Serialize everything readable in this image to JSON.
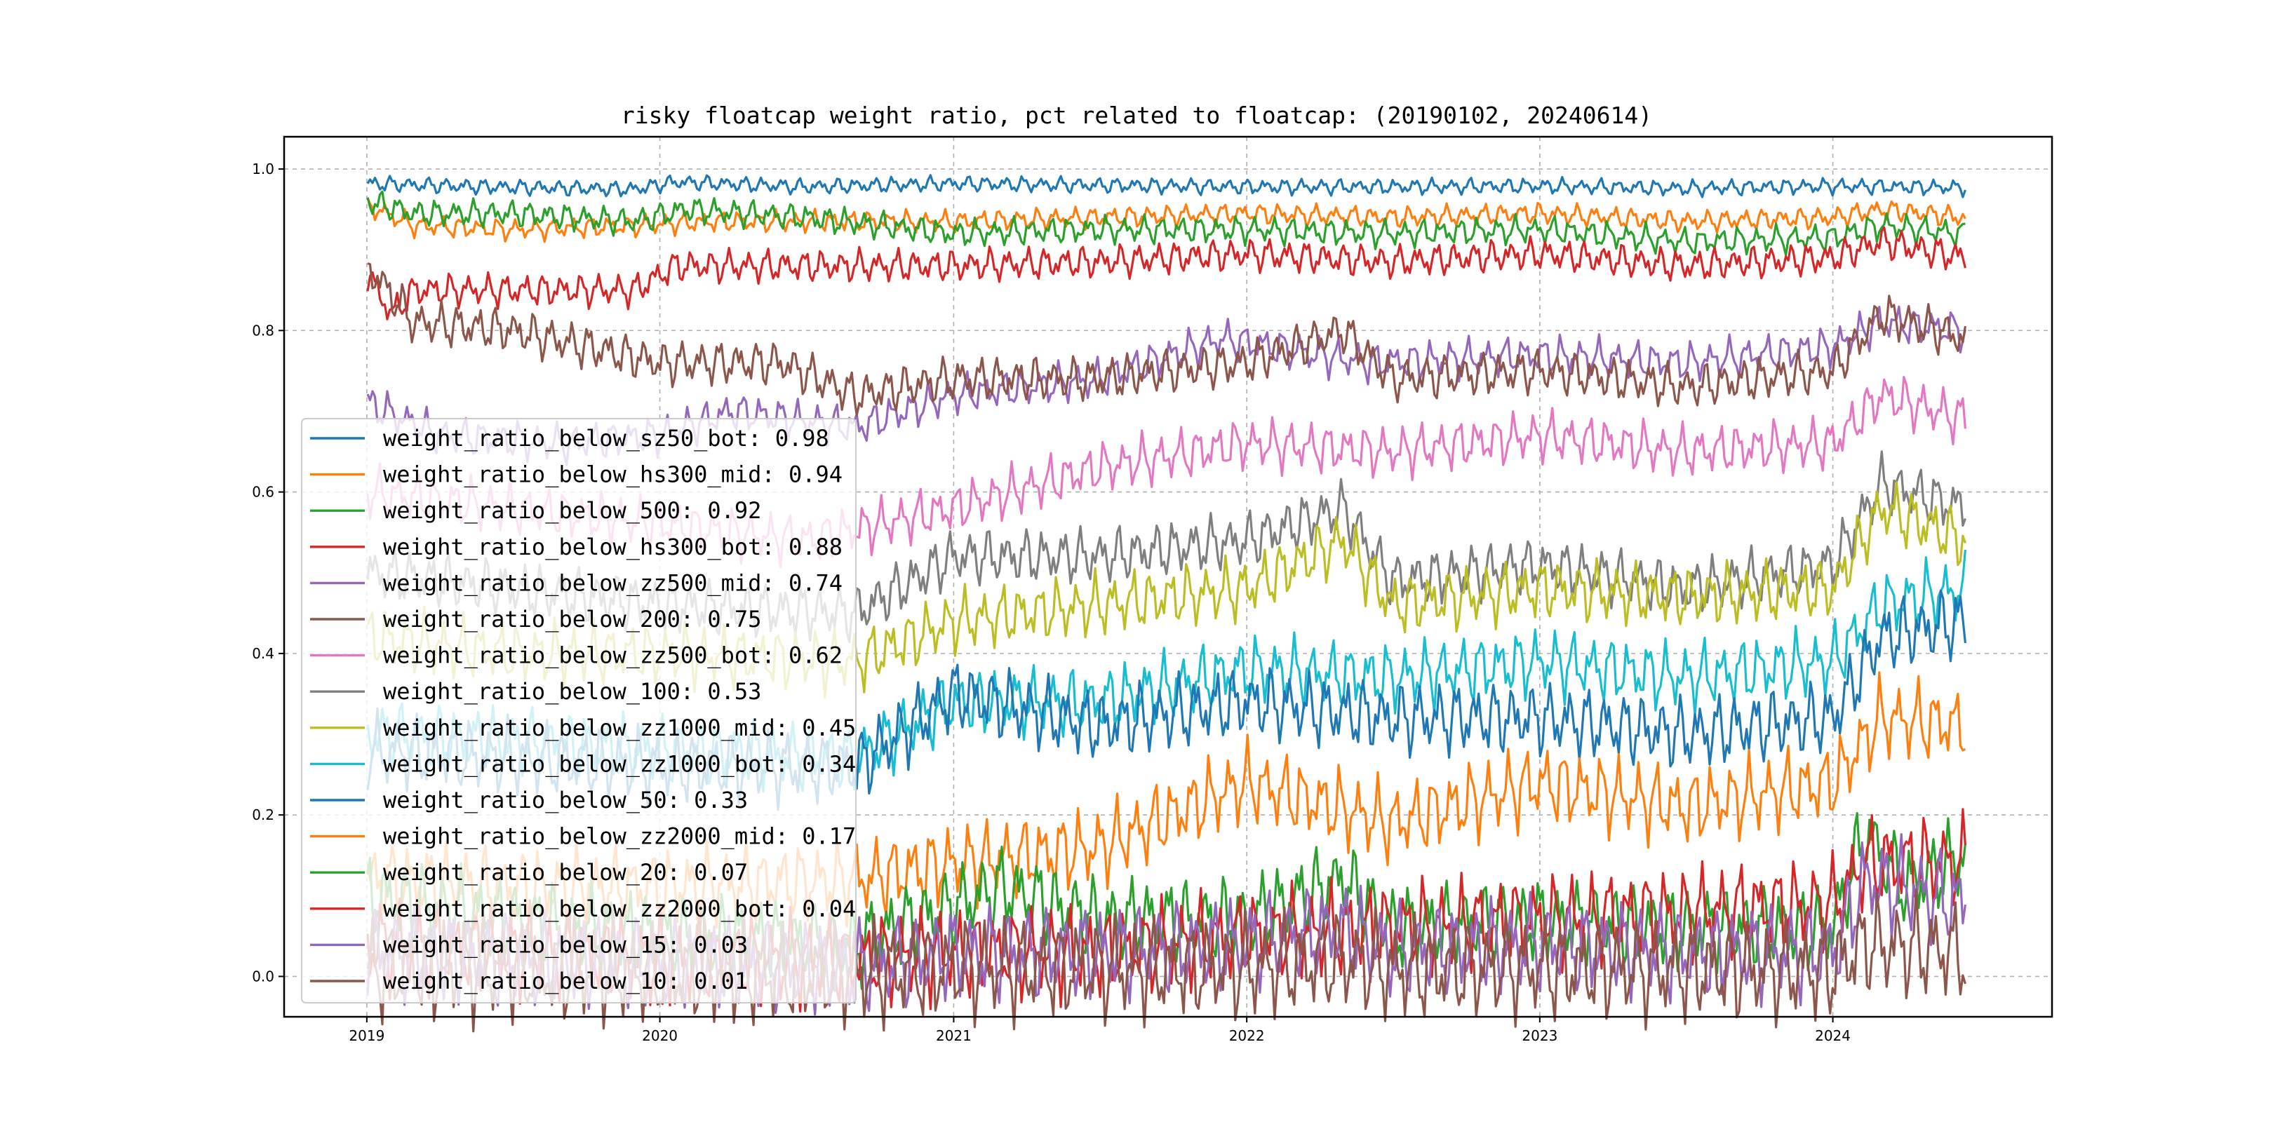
{
  "chart_data": {
    "type": "line",
    "title": "risky floatcap weight ratio, pct related to floatcap: (20190102, 20240614)",
    "xlabel": "",
    "ylabel": "",
    "x_range": [
      "2019-01-02",
      "2024-06-14"
    ],
    "xlim": [
      "2018-09-20",
      "2024-09-30"
    ],
    "ylim": [
      -0.05,
      1.04
    ],
    "x_ticks": [
      {
        "date": "2019-01-01",
        "label": "2019"
      },
      {
        "date": "2020-01-01",
        "label": "2020"
      },
      {
        "date": "2021-01-01",
        "label": "2021"
      },
      {
        "date": "2022-01-01",
        "label": "2022"
      },
      {
        "date": "2023-01-01",
        "label": "2023"
      },
      {
        "date": "2024-01-01",
        "label": "2024"
      }
    ],
    "y_ticks": [
      {
        "value": 0.0,
        "label": "0.0"
      },
      {
        "value": 0.2,
        "label": "0.2"
      },
      {
        "value": 0.4,
        "label": "0.4"
      },
      {
        "value": 0.6,
        "label": "0.6"
      },
      {
        "value": 0.8,
        "label": "0.8"
      },
      {
        "value": 1.0,
        "label": "1.0"
      }
    ],
    "grid": true,
    "grid_style": "dashed",
    "legend_position": "center-left",
    "series": [
      {
        "name": "weight_ratio_below_sz50_bot",
        "legend": "weight_ratio_below_sz50_bot: 0.98",
        "color": "#1f77b4",
        "points": [
          [
            "2019-01-02",
            0.982
          ],
          [
            "2019-06-01",
            0.978
          ],
          [
            "2019-12-01",
            0.975
          ],
          [
            "2020-01-20",
            0.984
          ],
          [
            "2020-07-01",
            0.978
          ],
          [
            "2021-01-01",
            0.982
          ],
          [
            "2021-07-01",
            0.98
          ],
          [
            "2022-01-01",
            0.978
          ],
          [
            "2022-07-01",
            0.978
          ],
          [
            "2023-01-01",
            0.979
          ],
          [
            "2023-07-01",
            0.976
          ],
          [
            "2024-01-01",
            0.979
          ],
          [
            "2024-06-14",
            0.977
          ]
        ]
      },
      {
        "name": "weight_ratio_below_hs300_mid",
        "legend": "weight_ratio_below_hs300_mid: 0.94",
        "color": "#ff7f0e",
        "points": [
          [
            "2019-01-02",
            0.955
          ],
          [
            "2019-03-01",
            0.93
          ],
          [
            "2019-07-01",
            0.925
          ],
          [
            "2019-12-01",
            0.93
          ],
          [
            "2020-03-01",
            0.935
          ],
          [
            "2020-07-01",
            0.935
          ],
          [
            "2021-01-01",
            0.935
          ],
          [
            "2021-07-01",
            0.94
          ],
          [
            "2022-01-01",
            0.945
          ],
          [
            "2022-07-01",
            0.94
          ],
          [
            "2023-01-01",
            0.945
          ],
          [
            "2023-07-01",
            0.935
          ],
          [
            "2024-01-01",
            0.94
          ],
          [
            "2024-03-01",
            0.95
          ],
          [
            "2024-06-14",
            0.94
          ]
        ]
      },
      {
        "name": "weight_ratio_below_500",
        "legend": "weight_ratio_below_500: 0.92",
        "color": "#2ca02c",
        "points": [
          [
            "2019-01-02",
            0.96
          ],
          [
            "2019-03-01",
            0.945
          ],
          [
            "2019-07-01",
            0.945
          ],
          [
            "2019-12-01",
            0.935
          ],
          [
            "2020-02-01",
            0.95
          ],
          [
            "2020-07-01",
            0.94
          ],
          [
            "2021-01-01",
            0.92
          ],
          [
            "2021-07-01",
            0.925
          ],
          [
            "2022-01-01",
            0.925
          ],
          [
            "2022-07-01",
            0.92
          ],
          [
            "2023-01-01",
            0.925
          ],
          [
            "2023-07-01",
            0.91
          ],
          [
            "2024-01-01",
            0.915
          ],
          [
            "2024-03-01",
            0.93
          ],
          [
            "2024-06-14",
            0.92
          ]
        ]
      },
      {
        "name": "weight_ratio_below_hs300_bot",
        "legend": "weight_ratio_below_hs300_bot: 0.88",
        "color": "#d62728",
        "points": [
          [
            "2019-01-02",
            0.87
          ],
          [
            "2019-02-01",
            0.82
          ],
          [
            "2019-03-01",
            0.85
          ],
          [
            "2019-07-01",
            0.85
          ],
          [
            "2019-12-01",
            0.85
          ],
          [
            "2020-01-20",
            0.88
          ],
          [
            "2020-07-01",
            0.88
          ],
          [
            "2021-01-01",
            0.88
          ],
          [
            "2021-07-01",
            0.885
          ],
          [
            "2022-01-01",
            0.895
          ],
          [
            "2022-07-01",
            0.885
          ],
          [
            "2023-01-01",
            0.895
          ],
          [
            "2023-07-01",
            0.88
          ],
          [
            "2024-01-01",
            0.89
          ],
          [
            "2024-03-01",
            0.91
          ],
          [
            "2024-06-14",
            0.89
          ]
        ]
      },
      {
        "name": "weight_ratio_below_zz500_mid",
        "legend": "weight_ratio_below_zz500_mid: 0.74",
        "color": "#9467bd",
        "points": [
          [
            "2019-01-02",
            0.71
          ],
          [
            "2019-04-01",
            0.67
          ],
          [
            "2019-09-01",
            0.66
          ],
          [
            "2020-01-01",
            0.67
          ],
          [
            "2020-04-01",
            0.7
          ],
          [
            "2020-09-01",
            0.68
          ],
          [
            "2021-01-01",
            0.72
          ],
          [
            "2021-07-01",
            0.74
          ],
          [
            "2021-12-01",
            0.79
          ],
          [
            "2022-06-01",
            0.76
          ],
          [
            "2023-01-01",
            0.77
          ],
          [
            "2023-07-01",
            0.76
          ],
          [
            "2024-01-01",
            0.78
          ],
          [
            "2024-03-01",
            0.81
          ],
          [
            "2024-06-14",
            0.8
          ]
        ]
      },
      {
        "name": "weight_ratio_below_200",
        "legend": "weight_ratio_below_200: 0.75",
        "color": "#8c564b",
        "points": [
          [
            "2019-01-02",
            0.88
          ],
          [
            "2019-03-01",
            0.81
          ],
          [
            "2019-07-01",
            0.8
          ],
          [
            "2020-01-01",
            0.76
          ],
          [
            "2020-06-01",
            0.76
          ],
          [
            "2020-09-01",
            0.72
          ],
          [
            "2021-01-01",
            0.74
          ],
          [
            "2021-07-01",
            0.74
          ],
          [
            "2022-01-01",
            0.76
          ],
          [
            "2022-05-01",
            0.8
          ],
          [
            "2022-07-01",
            0.74
          ],
          [
            "2023-01-01",
            0.75
          ],
          [
            "2023-07-01",
            0.73
          ],
          [
            "2024-01-01",
            0.75
          ],
          [
            "2024-03-01",
            0.82
          ],
          [
            "2024-06-14",
            0.79
          ]
        ]
      },
      {
        "name": "weight_ratio_below_zz500_bot",
        "legend": "weight_ratio_below_zz500_bot: 0.62",
        "color": "#e377c2",
        "points": [
          [
            "2019-01-02",
            0.6
          ],
          [
            "2019-07-01",
            0.58
          ],
          [
            "2020-01-01",
            0.56
          ],
          [
            "2020-07-01",
            0.54
          ],
          [
            "2021-01-01",
            0.58
          ],
          [
            "2021-07-01",
            0.63
          ],
          [
            "2022-01-01",
            0.66
          ],
          [
            "2022-07-01",
            0.65
          ],
          [
            "2023-01-01",
            0.67
          ],
          [
            "2023-07-01",
            0.65
          ],
          [
            "2024-01-01",
            0.66
          ],
          [
            "2024-03-01",
            0.72
          ],
          [
            "2024-06-14",
            0.69
          ]
        ]
      },
      {
        "name": "weight_ratio_below_100",
        "legend": "weight_ratio_below_100: 0.53",
        "color": "#7f7f7f",
        "points": [
          [
            "2019-01-02",
            0.5
          ],
          [
            "2019-07-01",
            0.48
          ],
          [
            "2020-01-01",
            0.46
          ],
          [
            "2020-09-01",
            0.45
          ],
          [
            "2021-01-01",
            0.52
          ],
          [
            "2021-07-01",
            0.52
          ],
          [
            "2022-01-01",
            0.54
          ],
          [
            "2022-05-01",
            0.58
          ],
          [
            "2022-07-01",
            0.49
          ],
          [
            "2023-01-01",
            0.51
          ],
          [
            "2023-07-01",
            0.48
          ],
          [
            "2024-01-01",
            0.51
          ],
          [
            "2024-03-01",
            0.61
          ],
          [
            "2024-06-14",
            0.58
          ]
        ]
      },
      {
        "name": "weight_ratio_below_zz1000_mid",
        "legend": "weight_ratio_below_zz1000_mid: 0.45",
        "color": "#bcbd22",
        "points": [
          [
            "2019-01-02",
            0.42
          ],
          [
            "2019-07-01",
            0.4
          ],
          [
            "2020-01-01",
            0.4
          ],
          [
            "2020-09-01",
            0.39
          ],
          [
            "2021-01-01",
            0.44
          ],
          [
            "2021-07-01",
            0.46
          ],
          [
            "2022-01-01",
            0.48
          ],
          [
            "2022-05-01",
            0.54
          ],
          [
            "2022-07-01",
            0.46
          ],
          [
            "2023-01-01",
            0.48
          ],
          [
            "2023-07-01",
            0.47
          ],
          [
            "2024-01-01",
            0.48
          ],
          [
            "2024-03-01",
            0.58
          ],
          [
            "2024-06-14",
            0.54
          ]
        ]
      },
      {
        "name": "weight_ratio_below_zz1000_bot",
        "legend": "weight_ratio_below_zz1000_bot: 0.34",
        "color": "#17becf",
        "points": [
          [
            "2019-01-02",
            0.3
          ],
          [
            "2019-07-01",
            0.29
          ],
          [
            "2020-01-01",
            0.28
          ],
          [
            "2020-09-01",
            0.27
          ],
          [
            "2021-01-01",
            0.34
          ],
          [
            "2021-07-01",
            0.34
          ],
          [
            "2022-01-01",
            0.38
          ],
          [
            "2022-07-01",
            0.37
          ],
          [
            "2023-01-01",
            0.39
          ],
          [
            "2023-07-01",
            0.37
          ],
          [
            "2024-01-01",
            0.39
          ],
          [
            "2024-03-01",
            0.46
          ],
          [
            "2024-06-14",
            0.48
          ]
        ]
      },
      {
        "name": "weight_ratio_below_50",
        "legend": "weight_ratio_below_50: 0.33",
        "color": "#1f77b4",
        "points": [
          [
            "2019-01-02",
            0.28
          ],
          [
            "2019-07-01",
            0.27
          ],
          [
            "2020-01-01",
            0.26
          ],
          [
            "2020-09-01",
            0.26
          ],
          [
            "2021-01-01",
            0.35
          ],
          [
            "2021-07-01",
            0.31
          ],
          [
            "2022-01-01",
            0.34
          ],
          [
            "2022-07-01",
            0.32
          ],
          [
            "2023-01-01",
            0.32
          ],
          [
            "2023-07-01",
            0.3
          ],
          [
            "2024-01-01",
            0.32
          ],
          [
            "2024-03-01",
            0.42
          ],
          [
            "2024-06-14",
            0.44
          ]
        ]
      },
      {
        "name": "weight_ratio_below_zz2000_mid",
        "legend": "weight_ratio_below_zz2000_mid: 0.17",
        "color": "#ff7f0e",
        "points": [
          [
            "2019-01-02",
            0.12
          ],
          [
            "2019-07-01",
            0.11
          ],
          [
            "2020-01-01",
            0.11
          ],
          [
            "2020-09-01",
            0.12
          ],
          [
            "2021-01-01",
            0.14
          ],
          [
            "2021-07-01",
            0.16
          ],
          [
            "2022-01-01",
            0.24
          ],
          [
            "2022-07-01",
            0.19
          ],
          [
            "2023-01-01",
            0.24
          ],
          [
            "2023-07-01",
            0.21
          ],
          [
            "2024-01-01",
            0.24
          ],
          [
            "2024-03-01",
            0.32
          ],
          [
            "2024-06-14",
            0.31
          ]
        ]
      },
      {
        "name": "weight_ratio_below_20",
        "legend": "weight_ratio_below_20: 0.07",
        "color": "#2ca02c",
        "points": [
          [
            "2019-01-02",
            0.1
          ],
          [
            "2019-07-01",
            0.07
          ],
          [
            "2020-01-01",
            0.05
          ],
          [
            "2020-09-01",
            0.04
          ],
          [
            "2021-03-01",
            0.11
          ],
          [
            "2021-07-01",
            0.07
          ],
          [
            "2022-01-01",
            0.07
          ],
          [
            "2022-05-01",
            0.12
          ],
          [
            "2022-07-01",
            0.06
          ],
          [
            "2023-01-01",
            0.07
          ],
          [
            "2023-07-01",
            0.06
          ],
          [
            "2024-01-01",
            0.06
          ],
          [
            "2024-02-10",
            0.18
          ],
          [
            "2024-04-01",
            0.11
          ],
          [
            "2024-06-14",
            0.15
          ]
        ]
      },
      {
        "name": "weight_ratio_below_zz2000_bot",
        "legend": "weight_ratio_below_zz2000_bot: 0.04",
        "color": "#d62728",
        "points": [
          [
            "2019-01-02",
            0.04
          ],
          [
            "2019-07-01",
            0.03
          ],
          [
            "2020-01-01",
            0.02
          ],
          [
            "2020-09-01",
            0.02
          ],
          [
            "2021-01-01",
            0.03
          ],
          [
            "2021-07-01",
            0.03
          ],
          [
            "2022-01-01",
            0.05
          ],
          [
            "2022-07-01",
            0.06
          ],
          [
            "2023-01-01",
            0.07
          ],
          [
            "2023-07-01",
            0.08
          ],
          [
            "2024-01-01",
            0.09
          ],
          [
            "2024-02-10",
            0.14
          ],
          [
            "2024-06-14",
            0.14
          ]
        ]
      },
      {
        "name": "weight_ratio_below_15",
        "legend": "weight_ratio_below_15: 0.03",
        "color": "#9467bd",
        "points": [
          [
            "2019-01-02",
            0.03
          ],
          [
            "2019-07-01",
            0.02
          ],
          [
            "2020-01-01",
            0.015
          ],
          [
            "2020-09-01",
            0.01
          ],
          [
            "2021-01-01",
            0.03
          ],
          [
            "2021-07-01",
            0.03
          ],
          [
            "2022-01-01",
            0.04
          ],
          [
            "2022-05-01",
            0.06
          ],
          [
            "2022-07-01",
            0.03
          ],
          [
            "2023-01-01",
            0.04
          ],
          [
            "2023-07-01",
            0.03
          ],
          [
            "2024-01-01",
            0.03
          ],
          [
            "2024-02-10",
            0.12
          ],
          [
            "2024-06-14",
            0.09
          ]
        ]
      },
      {
        "name": "weight_ratio_below_10",
        "legend": "weight_ratio_below_10: 0.01",
        "color": "#8c564b",
        "points": [
          [
            "2019-01-02",
            0.01
          ],
          [
            "2019-07-01",
            0.008
          ],
          [
            "2020-01-01",
            0.005
          ],
          [
            "2020-09-01",
            0.003
          ],
          [
            "2021-01-01",
            0.01
          ],
          [
            "2021-07-01",
            0.01
          ],
          [
            "2022-01-01",
            0.01
          ],
          [
            "2022-05-01",
            0.02
          ],
          [
            "2022-07-01",
            0.008
          ],
          [
            "2023-01-01",
            0.01
          ],
          [
            "2023-07-01",
            0.008
          ],
          [
            "2024-01-01",
            0.008
          ],
          [
            "2024-02-10",
            0.04
          ],
          [
            "2024-06-14",
            0.03
          ]
        ]
      }
    ]
  }
}
